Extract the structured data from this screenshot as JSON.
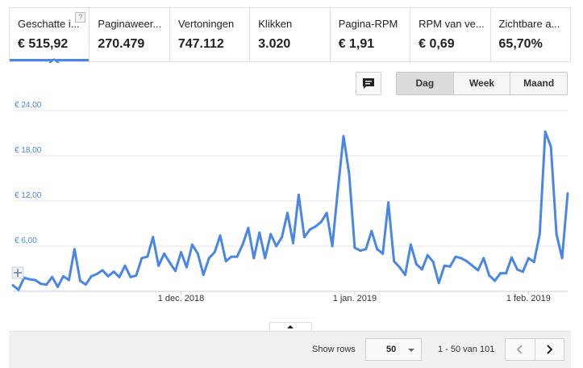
{
  "metrics": [
    {
      "label": "Geschatte i...",
      "value": "€ 515,92",
      "active": true
    },
    {
      "label": "Paginaweer...",
      "value": "270.479"
    },
    {
      "label": "Vertoningen",
      "value": "747.112"
    },
    {
      "label": "Klikken",
      "value": "3.020"
    },
    {
      "label": "Pagina-RPM",
      "value": "€ 1,91"
    },
    {
      "label": "RPM van ve...",
      "value": "€ 0,69"
    },
    {
      "label": "Zichtbare a...",
      "value": "65,70%"
    }
  ],
  "help_glyph": "?",
  "period": {
    "options": [
      "Dag",
      "Week",
      "Maand"
    ],
    "selected": "Dag"
  },
  "chart_data": {
    "type": "line",
    "ylim": [
      0,
      24
    ],
    "y_ticks": [
      {
        "value": 6,
        "label": "€ 6,00"
      },
      {
        "value": 12,
        "label": "€ 12,00"
      },
      {
        "value": 18,
        "label": "€ 18,00"
      },
      {
        "value": 24,
        "label": "€ 24,00"
      }
    ],
    "x_ticks": [
      {
        "index": 30,
        "label": "1 dec. 2018"
      },
      {
        "index": 61,
        "label": "1 jan. 2019"
      },
      {
        "index": 92,
        "label": "1 feb. 2019"
      }
    ],
    "color": "#4a86e8",
    "values": [
      0.8,
      0.2,
      1.8,
      1.6,
      1.5,
      1.0,
      0.9,
      1.9,
      0.6,
      2.0,
      1.5,
      5.6,
      1.4,
      0.9,
      2.0,
      2.3,
      2.8,
      2.0,
      2.6,
      1.9,
      3.4,
      1.9,
      2.1,
      4.4,
      4.6,
      7.2,
      3.4,
      5.0,
      3.8,
      2.7,
      5.2,
      3.2,
      6.2,
      5.0,
      2.2,
      4.4,
      5.2,
      7.4,
      4.0,
      4.6,
      4.6,
      6.2,
      8.4,
      4.4,
      7.8,
      4.4,
      7.6,
      6.0,
      7.2,
      10.4,
      6.4,
      12.8,
      7.2,
      8.2,
      8.6,
      9.2,
      10.4,
      6.0,
      13.6,
      20.6,
      15.6,
      5.8,
      5.4,
      5.6,
      8.0,
      5.6,
      5.0,
      11.8,
      4.0,
      3.2,
      2.2,
      6.2,
      3.6,
      2.9,
      4.8,
      3.9,
      1.1,
      3.4,
      3.3,
      4.6,
      4.4,
      4.0,
      3.4,
      2.8,
      4.4,
      2.1,
      1.4,
      2.4,
      2.4,
      4.5,
      2.9,
      2.6,
      4.4,
      3.9,
      7.6,
      21.2,
      19.2,
      7.6,
      4.4,
      13.0
    ]
  },
  "footer": {
    "rows_label": "Show rows",
    "rows_value": "50",
    "range_text": "1 - 50 van 101"
  }
}
